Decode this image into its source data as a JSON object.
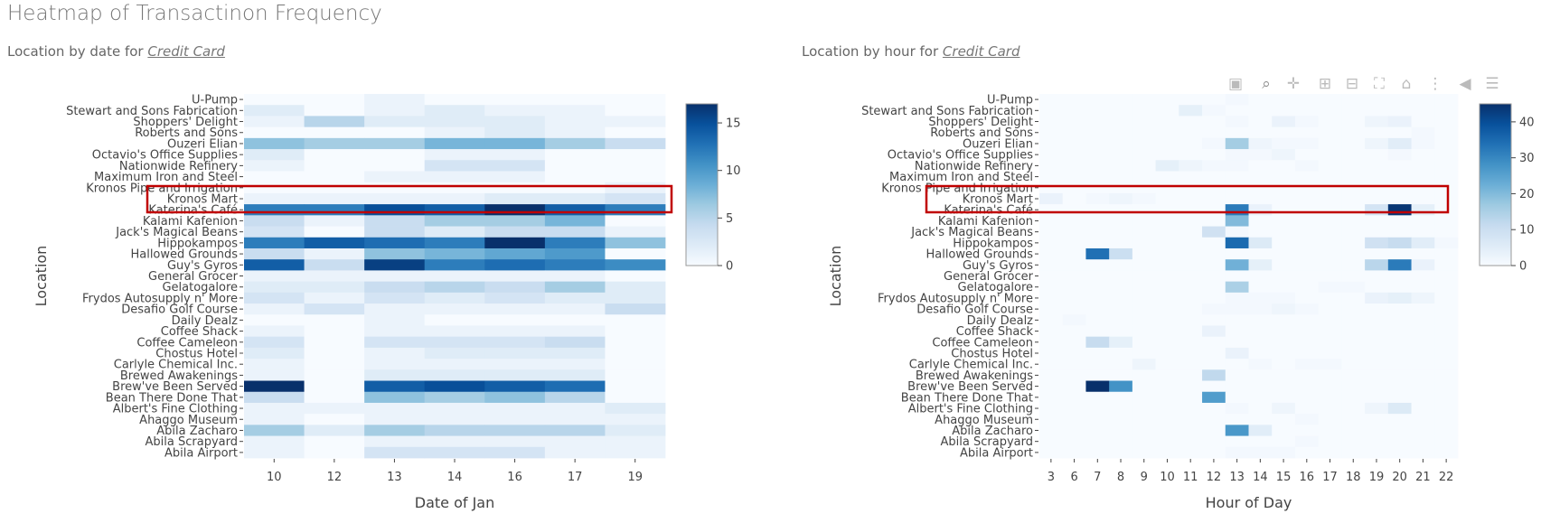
{
  "page_title": "Heatmap of Transactinon Frequency",
  "left_subtitle": {
    "prefix": "Location by date for",
    "method": "Credit Card"
  },
  "right_subtitle": {
    "prefix": "Location by hour for",
    "method": "Credit Card"
  },
  "toolbar_icons": [
    "camera-icon",
    "zoom-icon",
    "pan-icon",
    "zoom-in-icon",
    "zoom-out-icon",
    "autoscale-icon",
    "reset-axes-icon",
    "spike-lines-icon",
    "hover-closest-icon",
    "hover-compare-icon"
  ],
  "highlight_color": "#c00000",
  "chart_data": [
    {
      "type": "heatmap",
      "xlabel": "Date of Jan",
      "ylabel": "Location",
      "x": [
        "10",
        "12",
        "13",
        "14",
        "16",
        "17",
        "19"
      ],
      "y": [
        "U-Pump",
        "Stewart and Sons Fabrication",
        "Shoppers' Delight",
        "Roberts and Sons",
        "Ouzeri Elian",
        "Octavio's Office Supplies",
        "Nationwide Refinery",
        "Maximum Iron and Steel",
        "Kronos Pipe and Irrigation",
        "Kronos Mart",
        "Katerina's Café",
        "Kalami Kafenion",
        "Jack's Magical Beans",
        "Hippokampos",
        "Hallowed Grounds",
        "Guy's Gyros",
        "General Grocer",
        "Gelatogalore",
        "Frydos Autosupply n' More",
        "Desafio Golf Course",
        "Daily Dealz",
        "Coffee Shack",
        "Coffee Cameleon",
        "Chostus Hotel",
        "Carlyle Chemical Inc.",
        "Brewed Awakenings",
        "Brew've Been Served",
        "Bean There Done That",
        "Albert's Fine Clothing",
        "Ahaggo Museum",
        "Abila Zacharo",
        "Abila Scrapyard",
        "Abila Airport"
      ],
      "z": [
        [
          0,
          0,
          1,
          0,
          0,
          0,
          0
        ],
        [
          2,
          0,
          1,
          2,
          1,
          1,
          0
        ],
        [
          1,
          5,
          2,
          2,
          2,
          1,
          1
        ],
        [
          0,
          0,
          0,
          1,
          2,
          1,
          0
        ],
        [
          7,
          6,
          6,
          8,
          8,
          6,
          4
        ],
        [
          2,
          0,
          0,
          1,
          1,
          0,
          0
        ],
        [
          1,
          0,
          0,
          3,
          3,
          0,
          0
        ],
        [
          0,
          0,
          1,
          1,
          1,
          0,
          0
        ],
        [
          0,
          0,
          0,
          0,
          0,
          0,
          1
        ],
        [
          1,
          1,
          1,
          1,
          2,
          2,
          3
        ],
        [
          12,
          12,
          15,
          14,
          17,
          14,
          12
        ],
        [
          4,
          1,
          4,
          6,
          6,
          8,
          0
        ],
        [
          3,
          0,
          4,
          2,
          4,
          4,
          1
        ],
        [
          12,
          14,
          13,
          12,
          17,
          12,
          7
        ],
        [
          4,
          1,
          7,
          8,
          9,
          10,
          0
        ],
        [
          14,
          4,
          16,
          12,
          13,
          12,
          11
        ],
        [
          1,
          1,
          1,
          1,
          1,
          1,
          0
        ],
        [
          2,
          2,
          4,
          5,
          4,
          6,
          2
        ],
        [
          3,
          1,
          3,
          2,
          3,
          2,
          2
        ],
        [
          1,
          3,
          1,
          1,
          1,
          1,
          4
        ],
        [
          0,
          0,
          1,
          0,
          0,
          0,
          0
        ],
        [
          1,
          0,
          1,
          1,
          1,
          1,
          0
        ],
        [
          3,
          0,
          3,
          3,
          3,
          4,
          0
        ],
        [
          2,
          0,
          1,
          2,
          2,
          2,
          0
        ],
        [
          1,
          0,
          1,
          1,
          1,
          1,
          0
        ],
        [
          1,
          0,
          2,
          2,
          2,
          2,
          0
        ],
        [
          17,
          0,
          14,
          15,
          14,
          13,
          0
        ],
        [
          4,
          0,
          7,
          6,
          7,
          5,
          0
        ],
        [
          1,
          1,
          1,
          1,
          1,
          1,
          2
        ],
        [
          1,
          0,
          1,
          1,
          1,
          1,
          1
        ],
        [
          6,
          2,
          6,
          5,
          5,
          5,
          2
        ],
        [
          1,
          0,
          1,
          1,
          1,
          1,
          1
        ],
        [
          1,
          0,
          3,
          3,
          3,
          1,
          1
        ]
      ],
      "zmin": 0,
      "zmax": 17,
      "colorbar_ticks": [
        0,
        5,
        10,
        15
      ],
      "colorscale": "Blues"
    },
    {
      "type": "heatmap",
      "xlabel": "Hour of Day",
      "ylabel": "Location",
      "x": [
        "3",
        "6",
        "7",
        "8",
        "9",
        "10",
        "11",
        "12",
        "13",
        "14",
        "15",
        "16",
        "17",
        "18",
        "19",
        "20",
        "21",
        "22"
      ],
      "y": [
        "U-Pump",
        "Stewart and Sons Fabrication",
        "Shoppers' Delight",
        "Roberts and Sons",
        "Ouzeri Elian",
        "Octavio's Office Supplies",
        "Nationwide Refinery",
        "Maximum Iron and Steel",
        "Kronos Pipe and Irrigation",
        "Kronos Mart",
        "Katerina's Café",
        "Kalami Kafenion",
        "Jack's Magical Beans",
        "Hippokampos",
        "Hallowed Grounds",
        "Guy's Gyros",
        "General Grocer",
        "Gelatogalore",
        "Frydos Autosupply n' More",
        "Desafio Golf Course",
        "Daily Dealz",
        "Coffee Shack",
        "Coffee Cameleon",
        "Chostus Hotel",
        "Carlyle Chemical Inc.",
        "Brewed Awakenings",
        "Brew've Been Served",
        "Bean There Done That",
        "Albert's Fine Clothing",
        "Ahaggo Museum",
        "Abila Zacharo",
        "Abila Scrapyard",
        "Abila Airport"
      ],
      "z": [
        [
          0,
          0,
          0,
          0,
          0,
          0,
          0,
          0,
          1,
          0,
          0,
          0,
          0,
          0,
          0,
          0,
          0,
          0
        ],
        [
          0,
          0,
          0,
          0,
          0,
          0,
          4,
          1,
          0,
          0,
          0,
          0,
          0,
          0,
          0,
          0,
          0,
          0
        ],
        [
          0,
          0,
          0,
          0,
          0,
          0,
          0,
          0,
          1,
          0,
          3,
          1,
          0,
          0,
          2,
          3,
          0,
          0
        ],
        [
          0,
          0,
          0,
          0,
          0,
          0,
          0,
          0,
          0,
          0,
          0,
          0,
          0,
          0,
          0,
          0,
          1,
          0
        ],
        [
          0,
          0,
          0,
          0,
          0,
          0,
          0,
          1,
          16,
          2,
          1,
          1,
          0,
          0,
          2,
          5,
          1,
          0
        ],
        [
          0,
          0,
          0,
          0,
          0,
          0,
          0,
          0,
          1,
          1,
          2,
          0,
          0,
          0,
          0,
          1,
          0,
          0
        ],
        [
          0,
          0,
          0,
          0,
          0,
          4,
          2,
          1,
          1,
          0,
          0,
          1,
          0,
          0,
          0,
          0,
          0,
          0
        ],
        [
          0,
          0,
          0,
          0,
          0,
          0,
          0,
          0,
          0,
          0,
          0,
          0,
          0,
          0,
          0,
          0,
          0,
          0
        ],
        [
          0,
          0,
          0,
          0,
          0,
          0,
          0,
          0,
          0,
          0,
          0,
          0,
          0,
          0,
          0,
          0,
          0,
          0
        ],
        [
          3,
          0,
          1,
          2,
          1,
          0,
          0,
          0,
          0,
          0,
          0,
          0,
          0,
          0,
          0,
          0,
          0,
          0
        ],
        [
          0,
          0,
          0,
          0,
          0,
          0,
          0,
          0,
          32,
          3,
          0,
          0,
          0,
          0,
          8,
          44,
          4,
          0
        ],
        [
          0,
          0,
          0,
          0,
          0,
          0,
          0,
          0,
          20,
          0,
          0,
          0,
          0,
          0,
          0,
          0,
          0,
          0
        ],
        [
          0,
          0,
          0,
          0,
          0,
          0,
          0,
          9,
          1,
          0,
          0,
          0,
          0,
          0,
          0,
          0,
          0,
          0
        ],
        [
          0,
          0,
          0,
          0,
          0,
          0,
          0,
          0,
          35,
          6,
          0,
          0,
          0,
          0,
          9,
          11,
          5,
          1
        ],
        [
          0,
          0,
          34,
          10,
          0,
          0,
          0,
          0,
          0,
          0,
          0,
          0,
          0,
          0,
          0,
          0,
          0,
          0
        ],
        [
          0,
          0,
          0,
          0,
          0,
          0,
          0,
          0,
          22,
          4,
          0,
          0,
          0,
          0,
          13,
          32,
          3,
          0
        ],
        [
          0,
          0,
          0,
          0,
          0,
          0,
          0,
          0,
          0,
          0,
          0,
          0,
          0,
          0,
          0,
          0,
          0,
          0
        ],
        [
          0,
          0,
          0,
          0,
          0,
          0,
          0,
          0,
          15,
          0,
          0,
          0,
          1,
          1,
          0,
          0,
          0,
          0
        ],
        [
          0,
          0,
          0,
          0,
          0,
          0,
          0,
          0,
          1,
          1,
          1,
          0,
          0,
          0,
          3,
          4,
          2,
          0
        ],
        [
          0,
          0,
          0,
          0,
          0,
          0,
          0,
          1,
          1,
          1,
          2,
          1,
          0,
          0,
          0,
          0,
          0,
          0
        ],
        [
          0,
          1,
          0,
          0,
          0,
          0,
          0,
          0,
          0,
          0,
          0,
          0,
          0,
          0,
          0,
          0,
          0,
          0
        ],
        [
          0,
          0,
          0,
          0,
          0,
          0,
          0,
          3,
          0,
          0,
          0,
          0,
          0,
          0,
          0,
          0,
          0,
          0
        ],
        [
          0,
          0,
          11,
          4,
          0,
          0,
          0,
          0,
          0,
          0,
          0,
          0,
          0,
          0,
          0,
          0,
          0,
          0
        ],
        [
          0,
          0,
          0,
          0,
          0,
          0,
          0,
          0,
          3,
          0,
          0,
          0,
          0,
          0,
          0,
          0,
          0,
          0
        ],
        [
          0,
          0,
          0,
          0,
          2,
          0,
          0,
          0,
          0,
          1,
          0,
          1,
          1,
          0,
          0,
          0,
          0,
          0
        ],
        [
          0,
          0,
          0,
          0,
          0,
          0,
          0,
          12,
          0,
          0,
          0,
          0,
          0,
          0,
          0,
          0,
          0,
          0
        ],
        [
          0,
          0,
          45,
          28,
          0,
          0,
          0,
          0,
          0,
          0,
          0,
          0,
          0,
          0,
          0,
          0,
          0,
          0
        ],
        [
          0,
          0,
          0,
          0,
          0,
          0,
          0,
          26,
          0,
          0,
          0,
          0,
          0,
          0,
          0,
          0,
          0,
          0
        ],
        [
          0,
          0,
          0,
          0,
          0,
          0,
          0,
          0,
          1,
          0,
          2,
          0,
          0,
          0,
          2,
          6,
          0,
          0
        ],
        [
          0,
          0,
          0,
          0,
          0,
          0,
          0,
          0,
          0,
          0,
          0,
          1,
          0,
          0,
          0,
          0,
          0,
          0
        ],
        [
          0,
          0,
          0,
          0,
          0,
          0,
          0,
          0,
          27,
          5,
          0,
          0,
          0,
          0,
          0,
          0,
          0,
          0
        ],
        [
          0,
          0,
          0,
          0,
          0,
          0,
          0,
          0,
          0,
          0,
          0,
          1,
          0,
          0,
          0,
          0,
          0,
          0
        ],
        [
          0,
          0,
          0,
          0,
          0,
          0,
          0,
          0,
          1,
          1,
          1,
          0,
          0,
          0,
          0,
          0,
          0,
          0
        ]
      ],
      "zmin": 0,
      "zmax": 45,
      "colorbar_ticks": [
        0,
        10,
        20,
        30,
        40
      ],
      "colorscale": "Blues"
    }
  ]
}
